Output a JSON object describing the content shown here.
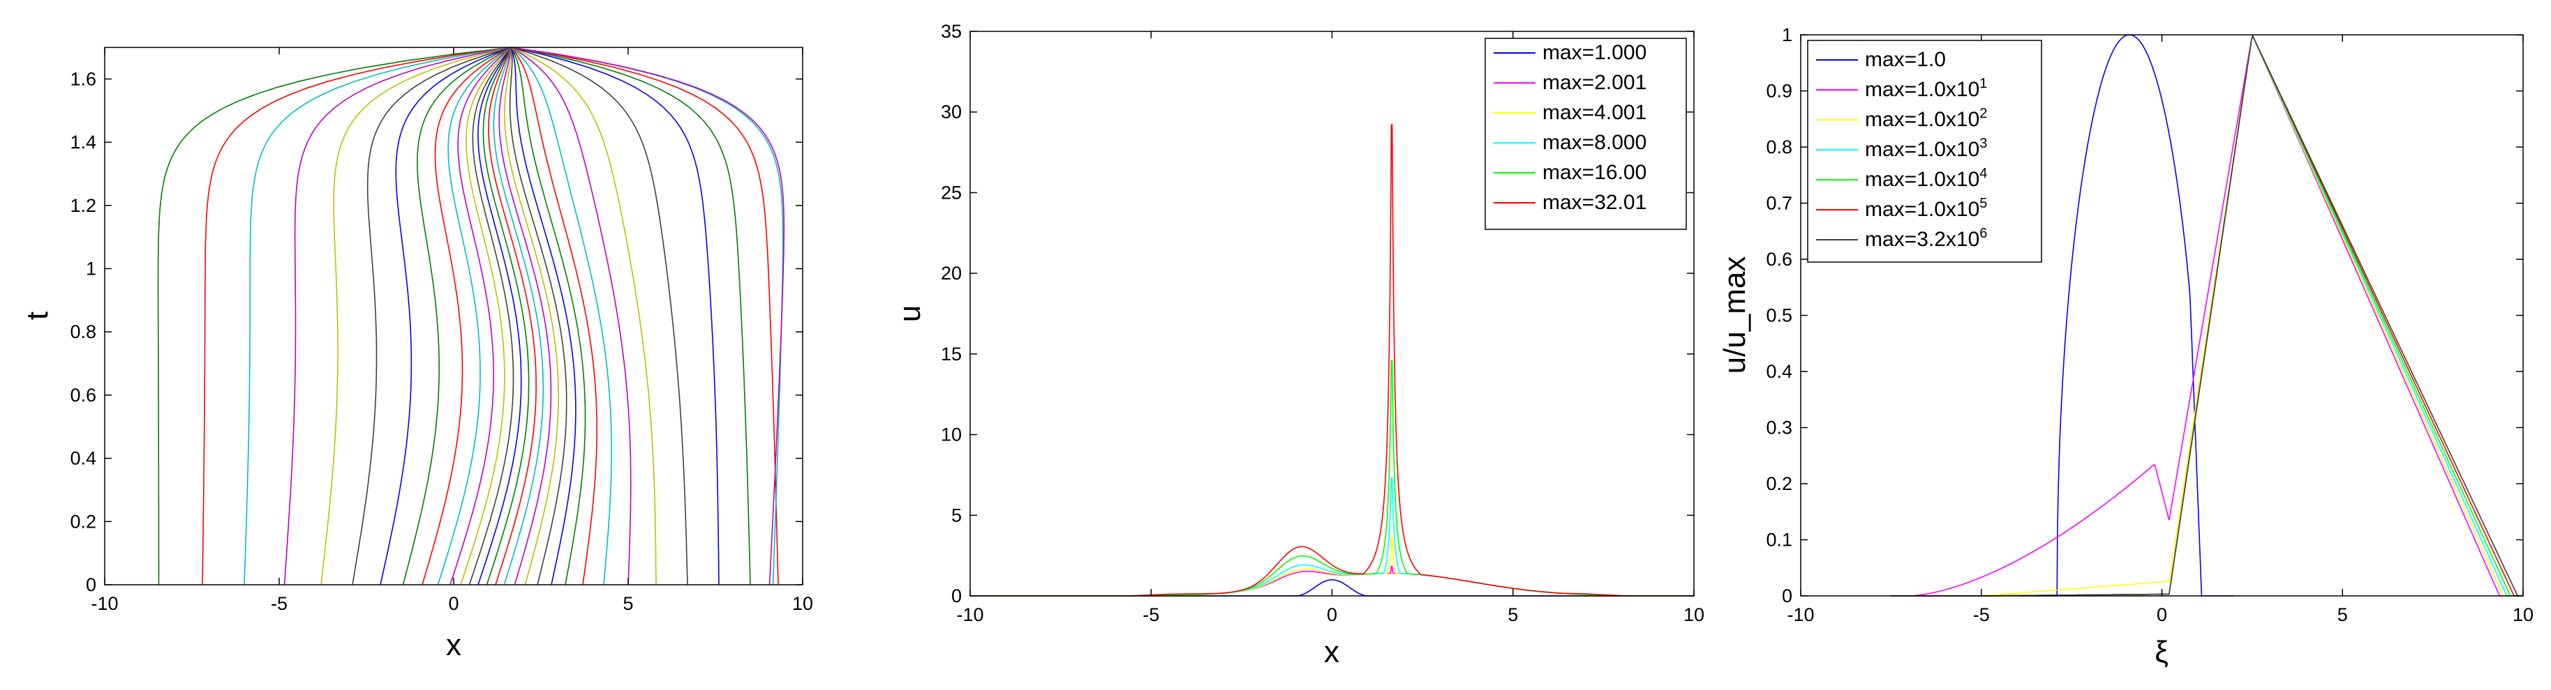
{
  "chart_data": [
    {
      "type": "line",
      "title": "",
      "xlabel": "x",
      "ylabel": "t",
      "xlim": [
        -10,
        10
      ],
      "ylim": [
        0,
        1.7
      ],
      "xticks": [
        "-10",
        "-5",
        "0",
        "5",
        "10"
      ],
      "yticks": [
        "0",
        "0.2",
        "0.4",
        "0.6",
        "0.8",
        "1",
        "1.2",
        "1.4",
        "1.6"
      ],
      "grid": false,
      "legend": "none",
      "description_free": true,
      "series": [
        {
          "x0": -8.45,
          "x1": -8.5,
          "color": "#008000"
        },
        {
          "x0": -7.2,
          "x1": -7.1,
          "color": "#ff0000"
        },
        {
          "x0": -6.0,
          "x1": -5.8,
          "color": "#00bfbf"
        },
        {
          "x0": -4.85,
          "x1": -4.5,
          "color": "#bf00bf"
        },
        {
          "x0": -3.8,
          "x1": -3.4,
          "color": "#bfbf00"
        },
        {
          "x0": -2.9,
          "x1": -2.4,
          "color": "#404040"
        },
        {
          "x0": -2.1,
          "x1": -1.55,
          "color": "#0000ff"
        },
        {
          "x0": -1.45,
          "x1": -0.9,
          "color": "#008000"
        },
        {
          "x0": -0.9,
          "x1": -0.35,
          "color": "#ff0000"
        },
        {
          "x0": -0.45,
          "x1": 0.05,
          "color": "#00bfbf"
        },
        {
          "x0": -0.1,
          "x1": 0.35,
          "color": "#bf00bf"
        },
        {
          "x0": 0.2,
          "x1": 0.6,
          "color": "#bfbf00"
        },
        {
          "x0": 0.45,
          "x1": 0.8,
          "color": "#404040"
        },
        {
          "x0": 0.7,
          "x1": 0.95,
          "color": "#0000ff"
        },
        {
          "x0": 0.95,
          "x1": 1.1,
          "color": "#008000"
        },
        {
          "x0": 1.2,
          "x1": 1.25,
          "color": "#ff0000"
        },
        {
          "x0": 1.45,
          "x1": 1.4,
          "color": "#00bfbf"
        },
        {
          "x0": 1.75,
          "x1": 1.55,
          "color": "#bf00bf"
        },
        {
          "x0": 2.05,
          "x1": 1.7,
          "color": "#bfbf00"
        },
        {
          "x0": 2.4,
          "x1": 1.85,
          "color": "#404040"
        },
        {
          "x0": 2.8,
          "x1": 2.05,
          "color": "#0000ff"
        },
        {
          "x0": 3.2,
          "x1": 2.3,
          "color": "#008000"
        },
        {
          "x0": 3.7,
          "x1": 2.6,
          "color": "#ff0000"
        },
        {
          "x0": 4.3,
          "x1": 3.0,
          "color": "#00bfbf"
        },
        {
          "x0": 5.0,
          "x1": 3.6,
          "color": "#bf00bf"
        },
        {
          "x0": 5.8,
          "x1": 4.3,
          "color": "#bfbf00"
        },
        {
          "x0": 6.7,
          "x1": 5.5,
          "color": "#404040"
        },
        {
          "x0": 7.6,
          "x1": 7.0,
          "color": "#0000ff"
        },
        {
          "x0": 8.5,
          "x1": 7.9,
          "color": "#008000"
        },
        {
          "x0": 9.3,
          "x1": 8.8,
          "color": "#ff0000"
        },
        {
          "x0": 9.15,
          "x1": 9.6,
          "color": "#00bfbf"
        },
        {
          "x0": 9.05,
          "x1": 9.7,
          "color": "#bf00bf"
        }
      ]
    },
    {
      "type": "line",
      "title": "",
      "xlabel": "x",
      "ylabel": "u",
      "xlim": [
        -10,
        10
      ],
      "ylim": [
        0,
        35
      ],
      "xticks": [
        "-10",
        "-5",
        "0",
        "5",
        "10"
      ],
      "yticks": [
        "0",
        "5",
        "10",
        "15",
        "20",
        "25",
        "30",
        "35"
      ],
      "grid": false,
      "legend": "top-right",
      "series": [
        {
          "name": "max=1.000",
          "color": "#0000ff",
          "peak_x": 0.0,
          "peak": 1.0
        },
        {
          "name": "max=2.001",
          "color": "#ff00ff",
          "peak_x": 1.65,
          "peak": 2.001
        },
        {
          "name": "max=4.001",
          "color": "#ffff00",
          "peak_x": 1.65,
          "peak": 4.001
        },
        {
          "name": "max=8.000",
          "color": "#00ffff",
          "peak_x": 1.65,
          "peak": 8.0
        },
        {
          "name": "max=16.00",
          "color": "#00ff00",
          "peak_x": 1.65,
          "peak": 16.0
        },
        {
          "name": "max=32.01",
          "color": "#ff0000",
          "peak_x": 1.65,
          "peak": 32.01
        }
      ]
    },
    {
      "type": "line",
      "title": "",
      "xlabel": "ξ",
      "ylabel": "u/u_max",
      "xlim": [
        -10,
        10
      ],
      "ylim": [
        0,
        1
      ],
      "xticks": [
        "-10",
        "-5",
        "0",
        "5",
        "10"
      ],
      "yticks": [
        "0",
        "0.1",
        "0.2",
        "0.3",
        "0.4",
        "0.5",
        "0.6",
        "0.7",
        "0.8",
        "0.9",
        "1"
      ],
      "grid": false,
      "legend": "top-left",
      "series": [
        {
          "name_base": "max=1.0",
          "name_sup": "",
          "color": "#0000ff"
        },
        {
          "name_base": "max=1.0x10",
          "name_sup": "1",
          "color": "#ff00ff"
        },
        {
          "name_base": "max=1.0x10",
          "name_sup": "2",
          "color": "#ffff00"
        },
        {
          "name_base": "max=1.0x10",
          "name_sup": "3",
          "color": "#00ffff"
        },
        {
          "name_base": "max=1.0x10",
          "name_sup": "4",
          "color": "#00ff00"
        },
        {
          "name_base": "max=1.0x10",
          "name_sup": "5",
          "color": "#ff0000"
        },
        {
          "name_base": "max=3.2x10",
          "name_sup": "6",
          "color": "#404040"
        }
      ],
      "feet": [
        9.35,
        9.45,
        9.55,
        9.65,
        9.75,
        9.85
      ]
    }
  ]
}
